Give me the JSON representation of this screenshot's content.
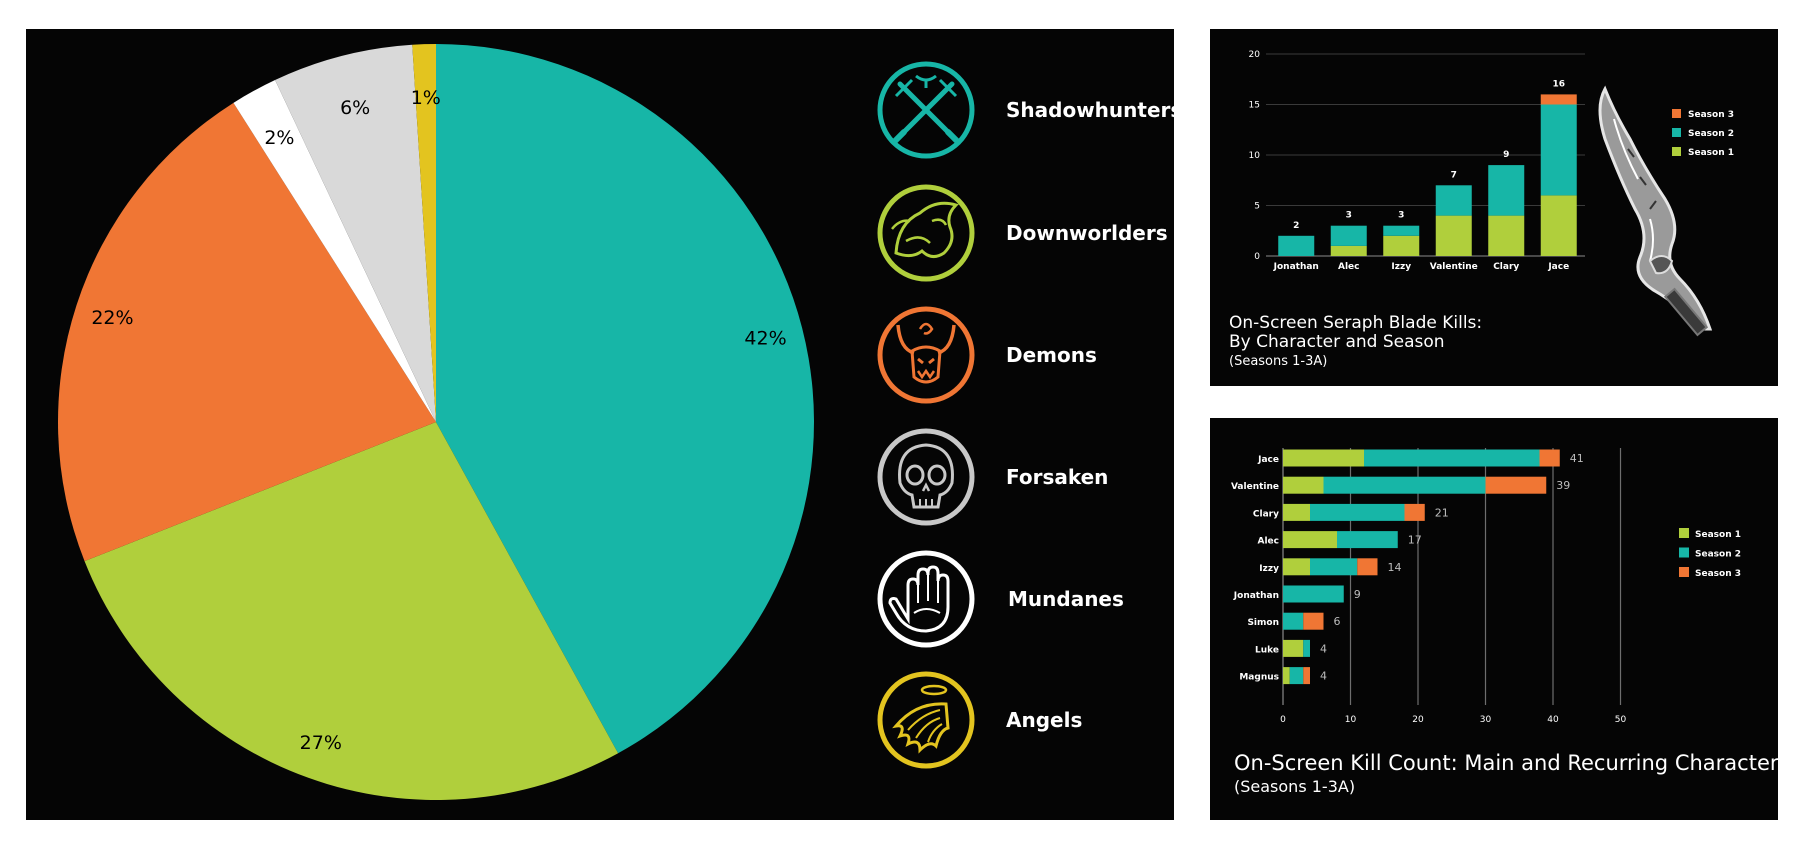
{
  "chart_data": [
    {
      "type": "pie",
      "title": "",
      "slices": [
        {
          "label": "Shadowhunters",
          "value": 42,
          "display": "42%",
          "color": "#17b6a7"
        },
        {
          "label": "Downworlders",
          "value": 27,
          "display": "27%",
          "color": "#b0cf3c"
        },
        {
          "label": "Demons",
          "value": 22,
          "display": "22%",
          "color": "#f07634"
        },
        {
          "label": "Mundanes",
          "value": 2,
          "display": "2%",
          "color": "#ffffff"
        },
        {
          "label": "Forsaken",
          "value": 6,
          "display": "6%",
          "color": "#d9d9d9"
        },
        {
          "label": "Angels",
          "value": 1,
          "display": "1%",
          "color": "#e3c41f"
        }
      ],
      "legend": [
        {
          "label": "Shadowhunters",
          "icon": "rune-daggers-icon",
          "color": "#17b6a7"
        },
        {
          "label": "Downworlders",
          "icon": "werewolf-icon",
          "color": "#b0cf3c"
        },
        {
          "label": "Demons",
          "icon": "demon-icon",
          "color": "#f07634"
        },
        {
          "label": "Forsaken",
          "icon": "skull-icon",
          "color": "#c8c8c8"
        },
        {
          "label": "Mundanes",
          "icon": "hand-icon",
          "color": "#ffffff"
        },
        {
          "label": "Angels",
          "icon": "angel-wing-icon",
          "color": "#e3c41f"
        }
      ],
      "legend_placement": "right"
    },
    {
      "type": "bar",
      "stacked": true,
      "title_lines": [
        "On-Screen Seraph Blade Kills:",
        "By Character and Season"
      ],
      "subtitle": "(Seasons 1-3A)",
      "categories": [
        "Jonathan",
        "Alec",
        "Izzy",
        "Valentine",
        "Clary",
        "Jace"
      ],
      "series": [
        {
          "name": "Season 1",
          "values": [
            0,
            1,
            2,
            4,
            4,
            6
          ],
          "color": "#b0cf3c"
        },
        {
          "name": "Season 2",
          "values": [
            2,
            2,
            1,
            3,
            5,
            9
          ],
          "color": "#17b6a7"
        },
        {
          "name": "Season 3",
          "values": [
            0,
            0,
            0,
            0,
            0,
            1
          ],
          "color": "#f07634"
        }
      ],
      "totals": [
        2,
        3,
        3,
        7,
        9,
        16
      ],
      "ylim": [
        0,
        20
      ],
      "yticks": [
        0,
        5,
        10,
        15,
        20
      ],
      "grid": true,
      "legend_order": [
        "Season 3",
        "Season 2",
        "Season 1"
      ],
      "legend_placement": "right",
      "image": "seraph-blade-icon"
    },
    {
      "type": "bar",
      "orientation": "horizontal",
      "stacked": true,
      "title": "On-Screen Kill Count: Main and Recurring Characters",
      "subtitle": "(Seasons 1-3A)",
      "categories": [
        "Jace",
        "Valentine",
        "Clary",
        "Alec",
        "Izzy",
        "Jonathan",
        "Simon",
        "Luke",
        "Magnus"
      ],
      "series": [
        {
          "name": "Season 1",
          "values": [
            12,
            6,
            4,
            8,
            4,
            0,
            0,
            3,
            1
          ],
          "color": "#b0cf3c"
        },
        {
          "name": "Season 2",
          "values": [
            26,
            24,
            14,
            9,
            7,
            9,
            3,
            1,
            2
          ],
          "color": "#17b6a7"
        },
        {
          "name": "Season 3",
          "values": [
            3,
            9,
            3,
            0,
            3,
            0,
            3,
            0,
            1
          ],
          "color": "#f07634"
        }
      ],
      "totals": [
        41,
        39,
        21,
        17,
        14,
        9,
        6,
        4,
        4
      ],
      "xlim": [
        0,
        50
      ],
      "xticks": [
        0,
        10,
        20,
        30,
        40,
        50
      ],
      "grid": true,
      "legend_order": [
        "Season 1",
        "Season 2",
        "Season 3"
      ],
      "legend_placement": "right"
    }
  ]
}
